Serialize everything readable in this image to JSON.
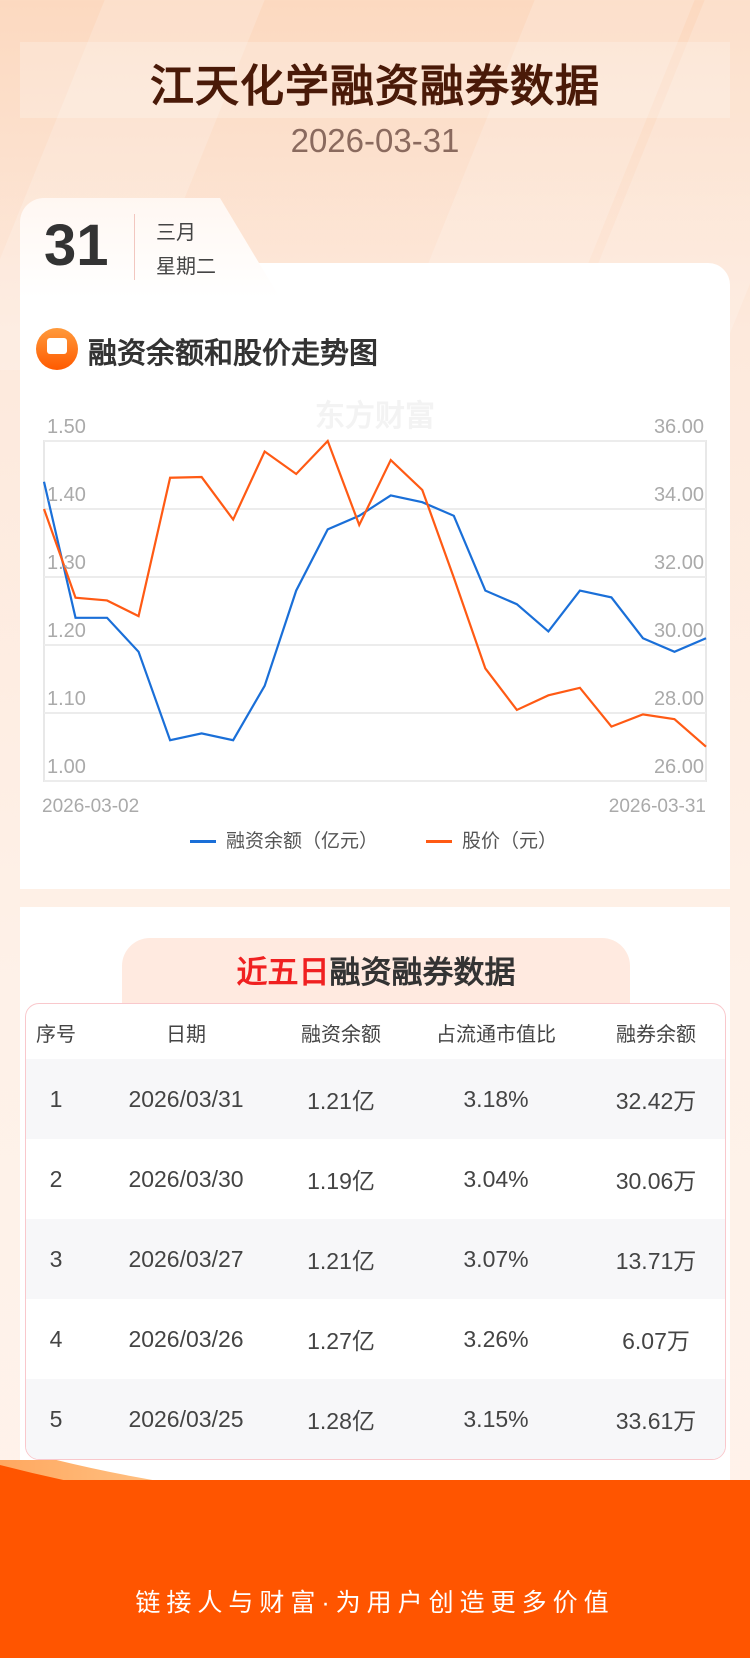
{
  "header": {
    "title": "江天化学融资融券数据",
    "date": "2026-03-31"
  },
  "date_tab": {
    "day": "31",
    "month": "三月",
    "weekday": "星期二"
  },
  "chart_section": {
    "title": "融资余额和股价走势图",
    "icon": "trend-chart-icon",
    "watermark": "东方财富"
  },
  "chart_data": {
    "type": "line",
    "title": "融资余额和股价走势图",
    "x": [
      "2026-03-02",
      "2026-03-03",
      "2026-03-04",
      "2026-03-05",
      "2026-03-06",
      "2026-03-09",
      "2026-03-10",
      "2026-03-11",
      "2026-03-12",
      "2026-03-13",
      "2026-03-16",
      "2026-03-17",
      "2026-03-18",
      "2026-03-19",
      "2026-03-20",
      "2026-03-23",
      "2026-03-24",
      "2026-03-25",
      "2026-03-26",
      "2026-03-27",
      "2026-03-30",
      "2026-03-31"
    ],
    "x_tick_labels": [
      "2026-03-02",
      "2026-03-31"
    ],
    "y_left": {
      "ticks": [
        "1.50",
        "1.40",
        "1.30",
        "1.20",
        "1.10",
        "1.00"
      ],
      "range": [
        1.0,
        1.5
      ]
    },
    "y_right": {
      "ticks": [
        "36.00",
        "34.00",
        "32.00",
        "30.00",
        "28.00",
        "26.00"
      ],
      "range": [
        26,
        36
      ]
    },
    "series": [
      {
        "name": "融资余额（亿元）",
        "axis": "left",
        "color": "#1a6fd8",
        "values": [
          1.44,
          1.24,
          1.24,
          1.19,
          1.06,
          1.07,
          1.06,
          1.14,
          1.28,
          1.37,
          1.39,
          1.42,
          1.41,
          1.39,
          1.28,
          1.26,
          1.22,
          1.28,
          1.27,
          1.21,
          1.19,
          1.21
        ]
      },
      {
        "name": "股价（元）",
        "axis": "right",
        "color": "#ff5a14",
        "values": [
          34.0,
          31.39,
          31.31,
          30.85,
          34.92,
          34.94,
          33.69,
          35.69,
          35.03,
          36.0,
          33.53,
          35.44,
          34.56,
          31.98,
          29.31,
          28.09,
          28.52,
          28.74,
          27.6,
          27.96,
          27.82,
          27.01
        ]
      }
    ],
    "legend_position": "bottom",
    "grid": true
  },
  "table_section": {
    "title_highlight": "近五日",
    "title_rest": "融资融券数据",
    "columns": [
      "序号",
      "日期",
      "融资余额",
      "占流通市值比",
      "融券余额"
    ],
    "rows": [
      [
        "1",
        "2026/03/31",
        "1.21亿",
        "3.18%",
        "32.42万"
      ],
      [
        "2",
        "2026/03/30",
        "1.19亿",
        "3.04%",
        "30.06万"
      ],
      [
        "3",
        "2026/03/27",
        "1.21亿",
        "3.07%",
        "13.71万"
      ],
      [
        "4",
        "2026/03/26",
        "1.27亿",
        "3.26%",
        "6.07万"
      ],
      [
        "5",
        "2026/03/25",
        "1.28亿",
        "3.15%",
        "33.61万"
      ]
    ]
  },
  "footer": {
    "slogan": "链接人与财富·为用户创造更多价值"
  }
}
